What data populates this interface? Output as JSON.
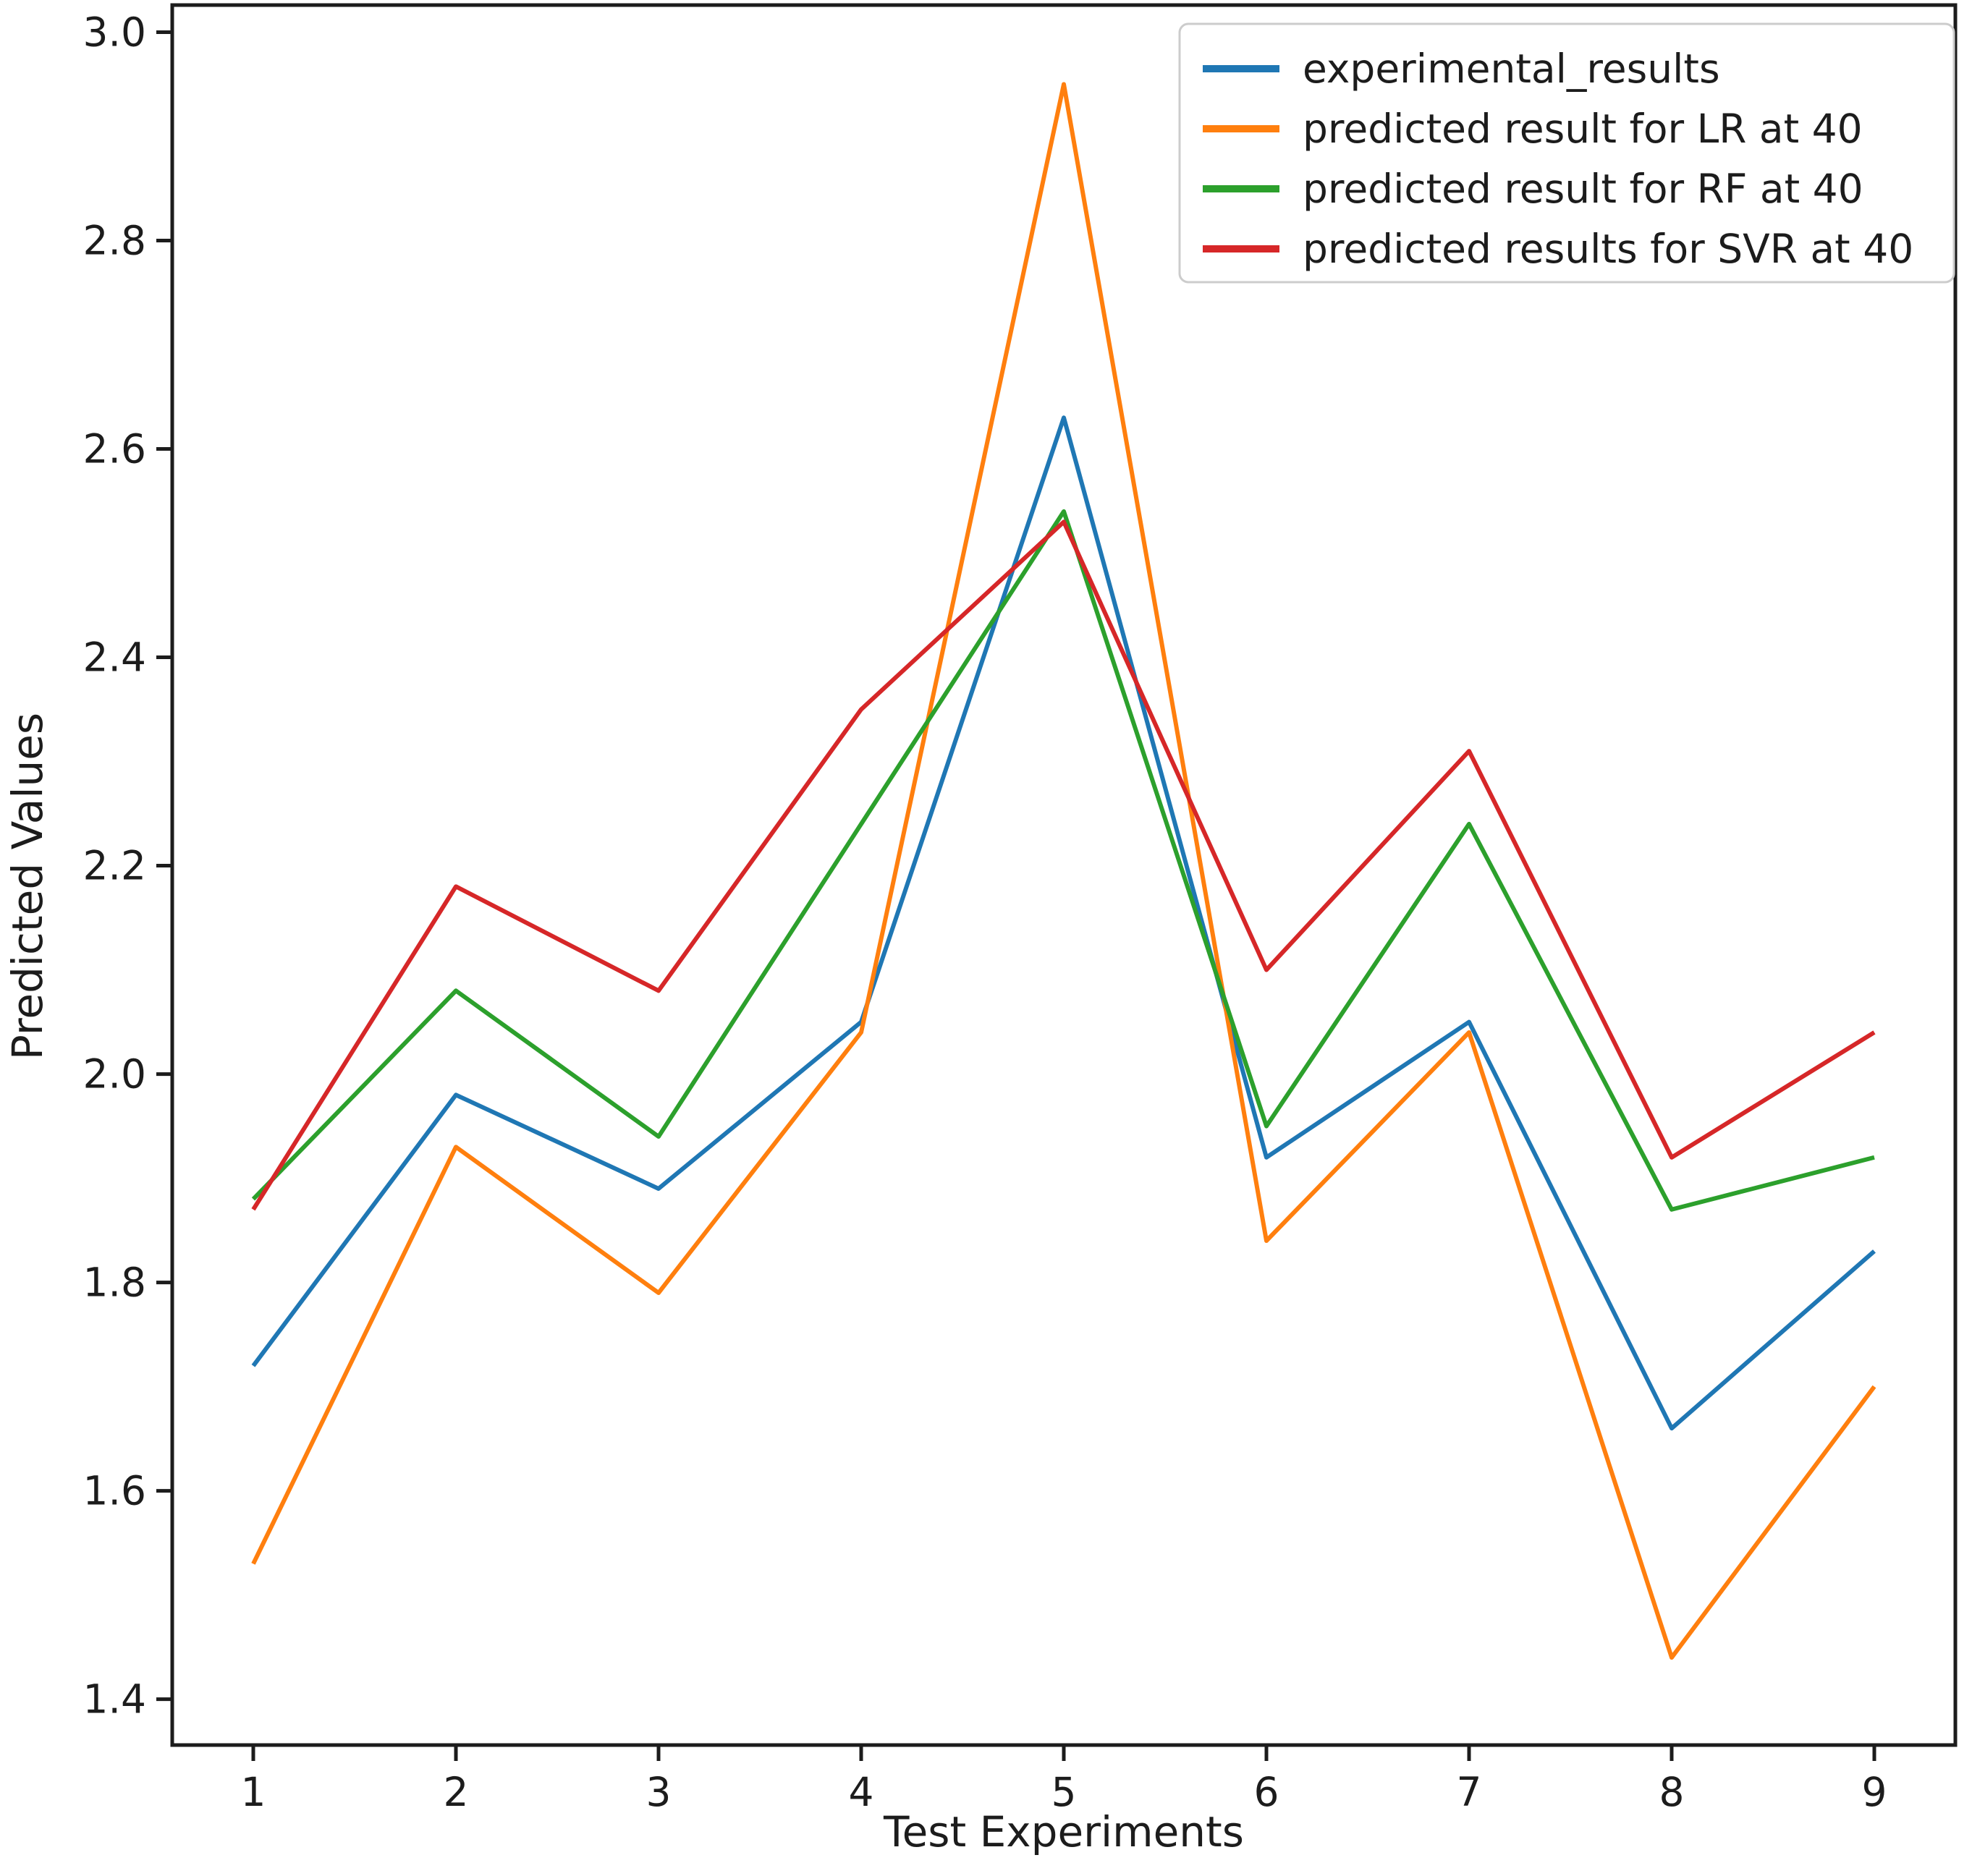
{
  "figure": {
    "background": "#ffffff",
    "spine_color": "#1c1c1c",
    "text_color": "#1c1c1c",
    "legend_border_color": "#cccccc"
  },
  "chart_data": {
    "type": "line",
    "title": "",
    "xlabel": "Test Experiments",
    "ylabel": "Predicted Values",
    "x": [
      1,
      2,
      3,
      4,
      5,
      6,
      7,
      8,
      9
    ],
    "x_ticks": [
      "1",
      "2",
      "3",
      "4",
      "5",
      "6",
      "7",
      "8",
      "9"
    ],
    "y_ticks": [
      "1.4",
      "1.6",
      "1.8",
      "2.0",
      "2.2",
      "2.4",
      "2.6",
      "2.8",
      "3.0"
    ],
    "xlim": [
      0.6,
      9.4
    ],
    "ylim": [
      1.356,
      3.026
    ],
    "grid": false,
    "legend_position": "upper right",
    "series": [
      {
        "name": "experimental_results",
        "color": "#1f77b4",
        "values": [
          1.72,
          1.98,
          1.89,
          2.05,
          2.63,
          1.92,
          2.05,
          1.66,
          1.83
        ]
      },
      {
        "name": "predicted result for LR at 40",
        "color": "#ff7f0e",
        "values": [
          1.53,
          1.93,
          1.79,
          2.04,
          2.95,
          1.84,
          2.04,
          1.44,
          1.7
        ]
      },
      {
        "name": "predicted result for RF at 40",
        "color": "#2ca02c",
        "values": [
          1.88,
          2.08,
          1.94,
          2.24,
          2.54,
          1.95,
          2.24,
          1.87,
          1.92
        ]
      },
      {
        "name": "predicted results for SVR at 40",
        "color": "#d62728",
        "values": [
          1.87,
          2.18,
          2.08,
          2.35,
          2.53,
          2.1,
          2.31,
          1.92,
          2.04
        ]
      }
    ]
  }
}
